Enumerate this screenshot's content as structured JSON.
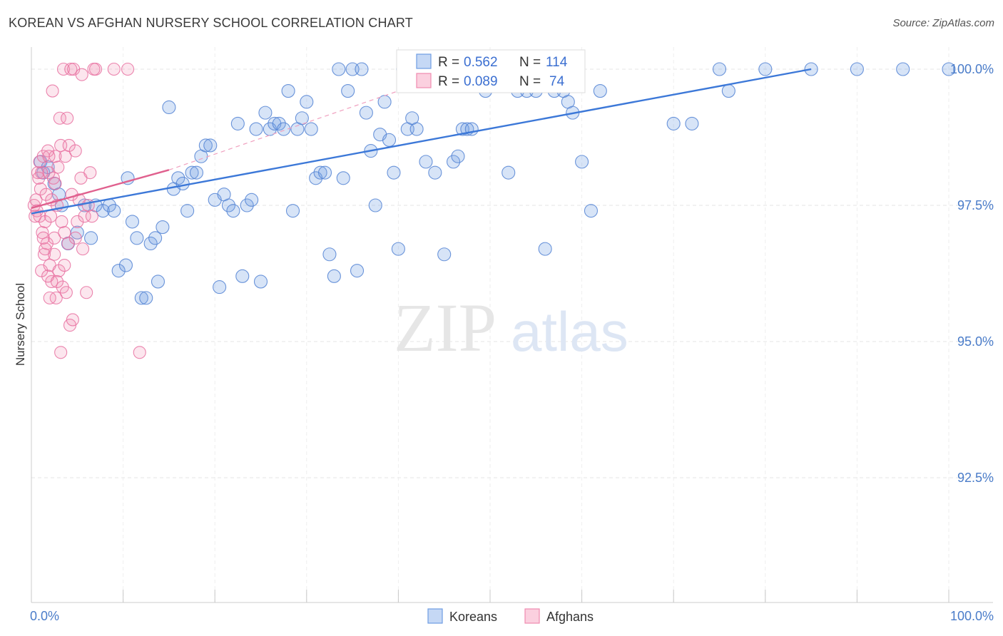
{
  "title": "KOREAN VS AFGHAN NURSERY SCHOOL CORRELATION CHART",
  "source": "Source: ZipAtlas.com",
  "watermark": {
    "zip": "ZIP",
    "atlas": "atlas"
  },
  "chart_data": {
    "type": "scatter",
    "title": "KOREAN VS AFGHAN NURSERY SCHOOL CORRELATION CHART",
    "xlabel": "",
    "ylabel": "Nursery School",
    "xlim": [
      0,
      100
    ],
    "ylim": [
      90.2,
      100.2
    ],
    "x_tick_labels": [
      {
        "value": 0,
        "label": "0.0%"
      },
      {
        "value": 100,
        "label": "100.0%"
      }
    ],
    "y_tick_labels": [
      {
        "value": 100,
        "label": "100.0%"
      },
      {
        "value": 97.5,
        "label": "97.5%"
      },
      {
        "value": 95,
        "label": "95.0%"
      },
      {
        "value": 92.5,
        "label": "92.5%"
      }
    ],
    "grid": true,
    "legend_position": "bottom-center",
    "colors": {
      "koreans": "#6f9de3",
      "afghans": "#f08bb0",
      "koreans_line": "#3c78d8",
      "afghans_line": "#e0608e",
      "tick_text": "#4a7cc9"
    },
    "stats": [
      {
        "series": "Koreans",
        "r_label": "R =",
        "r": "0.562",
        "n_label": "N =",
        "n": "114"
      },
      {
        "series": "Afghans",
        "r_label": "R =",
        "r": "0.089",
        "n_label": "N =",
        "n": "74"
      }
    ],
    "series": [
      {
        "name": "Koreans",
        "trend": {
          "x0": 0,
          "y0": 97.35,
          "x1": 85,
          "y1": 100.0
        },
        "points": [
          [
            1,
            98.3
          ],
          [
            1.3,
            98.1
          ],
          [
            1.8,
            98.2
          ],
          [
            2.5,
            97.9
          ],
          [
            3,
            97.7
          ],
          [
            3.3,
            97.5
          ],
          [
            4,
            96.8
          ],
          [
            5,
            97.0
          ],
          [
            5.8,
            97.5
          ],
          [
            6.5,
            96.9
          ],
          [
            7,
            97.5
          ],
          [
            7.8,
            97.4
          ],
          [
            8.5,
            97.5
          ],
          [
            9,
            97.4
          ],
          [
            9.5,
            96.3
          ],
          [
            10.3,
            96.4
          ],
          [
            10.5,
            98.0
          ],
          [
            11,
            97.2
          ],
          [
            11.5,
            96.9
          ],
          [
            12,
            95.8
          ],
          [
            12.5,
            95.8
          ],
          [
            13,
            96.8
          ],
          [
            13.5,
            96.9
          ],
          [
            13.8,
            96.1
          ],
          [
            14.3,
            97.1
          ],
          [
            15,
            99.3
          ],
          [
            15.5,
            97.8
          ],
          [
            16,
            98.0
          ],
          [
            16.5,
            97.9
          ],
          [
            17,
            97.4
          ],
          [
            17.5,
            98.1
          ],
          [
            18,
            98.1
          ],
          [
            18.5,
            98.4
          ],
          [
            19,
            98.6
          ],
          [
            19.5,
            98.6
          ],
          [
            20,
            97.6
          ],
          [
            20.5,
            96.0
          ],
          [
            21,
            97.7
          ],
          [
            21.5,
            97.5
          ],
          [
            22,
            97.4
          ],
          [
            22.5,
            99.0
          ],
          [
            23,
            96.2
          ],
          [
            23.5,
            97.5
          ],
          [
            24,
            97.6
          ],
          [
            24.5,
            98.9
          ],
          [
            25,
            96.1
          ],
          [
            25.5,
            99.2
          ],
          [
            26,
            98.9
          ],
          [
            26.5,
            99.0
          ],
          [
            27,
            99.0
          ],
          [
            27.5,
            98.9
          ],
          [
            28,
            99.6
          ],
          [
            28.5,
            97.4
          ],
          [
            29,
            98.9
          ],
          [
            29.5,
            99.1
          ],
          [
            30,
            99.4
          ],
          [
            30.5,
            98.9
          ],
          [
            31,
            98.0
          ],
          [
            31.5,
            98.1
          ],
          [
            32,
            98.1
          ],
          [
            32.5,
            96.6
          ],
          [
            33,
            96.2
          ],
          [
            33.5,
            100.0
          ],
          [
            34,
            98.0
          ],
          [
            34.5,
            99.6
          ],
          [
            35,
            100.0
          ],
          [
            35.5,
            96.3
          ],
          [
            36,
            100.0
          ],
          [
            36.5,
            99.2
          ],
          [
            37,
            98.5
          ],
          [
            37.5,
            97.5
          ],
          [
            38,
            98.8
          ],
          [
            38.5,
            99.4
          ],
          [
            39,
            98.7
          ],
          [
            39.5,
            98.1
          ],
          [
            40,
            96.7
          ],
          [
            40.5,
            100.0
          ],
          [
            41,
            98.9
          ],
          [
            41.5,
            99.1
          ],
          [
            42,
            98.9
          ],
          [
            43,
            98.3
          ],
          [
            44,
            98.1
          ],
          [
            45,
            96.6
          ],
          [
            46,
            98.3
          ],
          [
            46.5,
            98.4
          ],
          [
            47,
            98.9
          ],
          [
            47.5,
            98.9
          ],
          [
            48,
            98.9
          ],
          [
            48.5,
            100.0
          ],
          [
            49,
            99.7
          ],
          [
            49.5,
            99.6
          ],
          [
            50,
            100.0
          ],
          [
            52,
            98.1
          ],
          [
            53,
            99.6
          ],
          [
            54,
            99.6
          ],
          [
            55,
            99.6
          ],
          [
            56,
            96.7
          ],
          [
            57,
            99.6
          ],
          [
            58,
            99.6
          ],
          [
            60,
            98.3
          ],
          [
            61,
            97.4
          ],
          [
            62,
            99.6
          ],
          [
            70,
            99.0
          ],
          [
            72,
            99.0
          ],
          [
            75,
            100.0
          ],
          [
            76,
            99.6
          ],
          [
            80,
            100.0
          ],
          [
            85,
            100.0
          ],
          [
            90,
            100.0
          ],
          [
            95,
            100.0
          ],
          [
            100,
            100.0
          ],
          [
            58.5,
            99.4
          ],
          [
            59,
            99.2
          ],
          [
            44.5,
            100.0
          ]
        ]
      },
      {
        "name": "Afghans",
        "trend": {
          "x0": 0,
          "y0": 97.45,
          "x1": 15,
          "y1": 98.15,
          "dash_x1": 40,
          "dash_y1": 99.6
        },
        "points": [
          [
            0.3,
            97.5
          ],
          [
            0.5,
            97.6
          ],
          [
            0.6,
            97.4
          ],
          [
            0.7,
            98.1
          ],
          [
            0.8,
            98.0
          ],
          [
            0.9,
            97.3
          ],
          [
            1.0,
            97.8
          ],
          [
            1.1,
            96.3
          ],
          [
            1.2,
            97.0
          ],
          [
            1.3,
            98.4
          ],
          [
            1.4,
            96.6
          ],
          [
            1.5,
            97.2
          ],
          [
            1.6,
            97.7
          ],
          [
            1.7,
            96.8
          ],
          [
            1.8,
            98.5
          ],
          [
            1.9,
            98.1
          ],
          [
            2.0,
            96.4
          ],
          [
            2.1,
            97.3
          ],
          [
            2.2,
            97.6
          ],
          [
            2.3,
            99.6
          ],
          [
            2.4,
            98.0
          ],
          [
            2.5,
            96.9
          ],
          [
            2.6,
            98.4
          ],
          [
            2.7,
            95.8
          ],
          [
            2.8,
            97.5
          ],
          [
            2.9,
            98.2
          ],
          [
            3.0,
            96.3
          ],
          [
            3.1,
            99.1
          ],
          [
            3.2,
            98.6
          ],
          [
            3.3,
            97.2
          ],
          [
            3.4,
            96.0
          ],
          [
            3.5,
            100.0
          ],
          [
            3.6,
            97.0
          ],
          [
            3.7,
            98.4
          ],
          [
            3.8,
            95.9
          ],
          [
            3.9,
            99.1
          ],
          [
            4.0,
            96.8
          ],
          [
            4.1,
            98.6
          ],
          [
            4.2,
            95.3
          ],
          [
            4.3,
            100.0
          ],
          [
            4.4,
            97.7
          ],
          [
            4.5,
            95.4
          ],
          [
            4.6,
            100.0
          ],
          [
            4.8,
            96.9
          ],
          [
            5.0,
            97.2
          ],
          [
            5.2,
            97.6
          ],
          [
            5.4,
            98.0
          ],
          [
            5.6,
            96.7
          ],
          [
            5.8,
            97.3
          ],
          [
            6.0,
            95.9
          ],
          [
            6.2,
            97.5
          ],
          [
            6.4,
            98.1
          ],
          [
            6.6,
            97.3
          ],
          [
            7.0,
            100.0
          ],
          [
            2.5,
            96.6
          ],
          [
            2.0,
            95.8
          ],
          [
            2.2,
            96.1
          ],
          [
            1.5,
            96.7
          ],
          [
            1.8,
            96.2
          ],
          [
            3.2,
            94.8
          ],
          [
            11.8,
            94.8
          ],
          [
            6.8,
            100.0
          ],
          [
            9.0,
            100.0
          ],
          [
            10.5,
            100.0
          ],
          [
            1.1,
            98.1
          ],
          [
            0.9,
            98.3
          ],
          [
            2.6,
            97.9
          ],
          [
            3.6,
            96.4
          ],
          [
            1.9,
            98.4
          ],
          [
            0.4,
            97.3
          ],
          [
            2.8,
            96.1
          ],
          [
            1.3,
            96.9
          ],
          [
            4.8,
            98.5
          ],
          [
            5.5,
            99.9
          ]
        ]
      }
    ]
  },
  "legend": [
    {
      "label": "Koreans",
      "color": "#6f9de3"
    },
    {
      "label": "Afghans",
      "color": "#f08bb0"
    }
  ]
}
